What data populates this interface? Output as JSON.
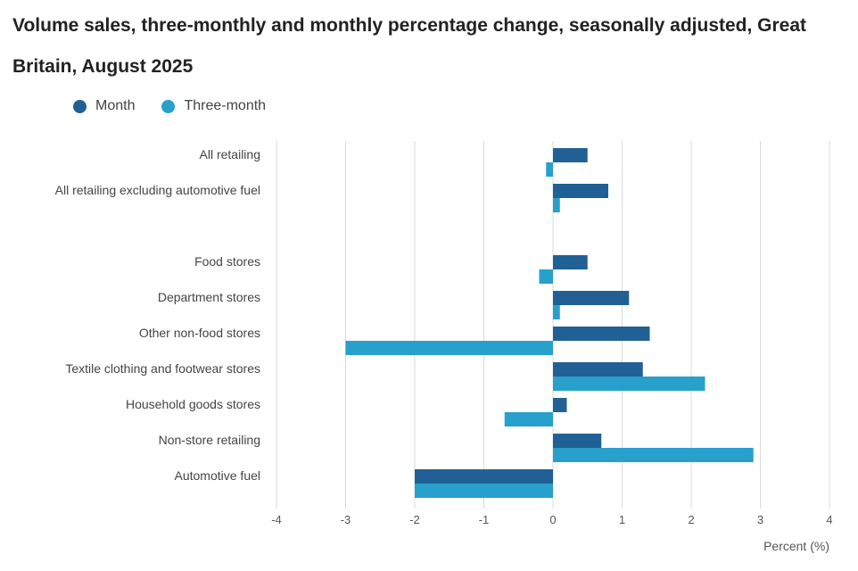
{
  "header": {
    "title": "Volume sales, three-monthly and monthly percentage change, seasonally adjusted, Great Britain, August 2025"
  },
  "legend": {
    "items": [
      {
        "label": "Month",
        "color": "#206095"
      },
      {
        "label": "Three-month",
        "color": "#27a0cc"
      }
    ]
  },
  "chart_data": {
    "type": "bar",
    "orientation": "horizontal",
    "title": "Volume sales, three-monthly and monthly percentage change, seasonally adjusted, Great Britain, August 2025",
    "categories": [
      "All retailing",
      "All retailing excluding automotive fuel",
      "",
      "Food stores",
      "Department stores",
      "Other non-food stores",
      "Textile clothing and footwear stores",
      "Household goods stores",
      "Non-store retailing",
      "Automotive fuel"
    ],
    "series": [
      {
        "name": "Month",
        "color": "#206095",
        "values": [
          0.5,
          0.8,
          null,
          0.5,
          1.1,
          1.4,
          1.3,
          0.2,
          0.7,
          -2.0
        ]
      },
      {
        "name": "Three-month",
        "color": "#27a0cc",
        "values": [
          -0.1,
          0.1,
          null,
          -0.2,
          0.1,
          -3.0,
          2.2,
          -0.7,
          2.9,
          -2.0
        ]
      }
    ],
    "xlabel": "Percent (%)",
    "ylabel": "",
    "xlim": [
      -4,
      4
    ],
    "xticks": [
      -4,
      -3,
      -2,
      -1,
      0,
      1,
      2,
      3,
      4
    ],
    "grid": true,
    "legend_position": "top-left"
  }
}
